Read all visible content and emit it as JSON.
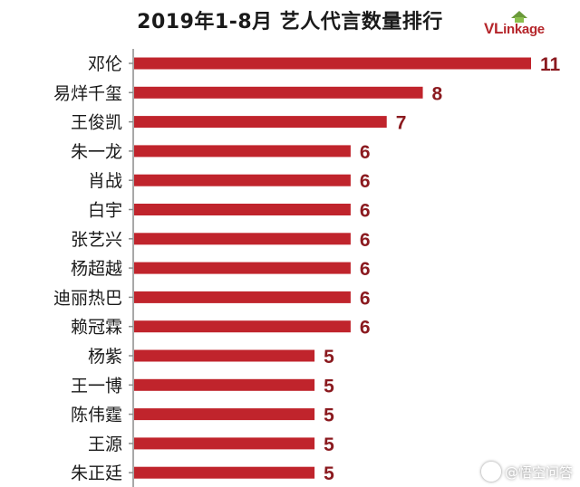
{
  "chart_data": {
    "type": "bar",
    "orientation": "horizontal",
    "title": "2019年1-8月 艺人代言数量排行",
    "categories": [
      "邓伦",
      "易烊千玺",
      "王俊凯",
      "朱一龙",
      "肖战",
      "白宇",
      "张艺兴",
      "杨超越",
      "迪丽热巴",
      "赖冠霖",
      "杨紫",
      "王一博",
      "陈伟霆",
      "王源",
      "朱正廷"
    ],
    "values": [
      11,
      8,
      7,
      6,
      6,
      6,
      6,
      6,
      6,
      6,
      5,
      5,
      5,
      5,
      5
    ],
    "xlim": [
      0,
      11
    ],
    "grid": false,
    "bar_color": "#c0242c",
    "label_color": "#8b1a1f"
  },
  "logo": {
    "name": "VLinkage",
    "part1": "VL",
    "part2": "ink",
    "part3": "age"
  },
  "watermark": {
    "text": "@悟空问答"
  }
}
